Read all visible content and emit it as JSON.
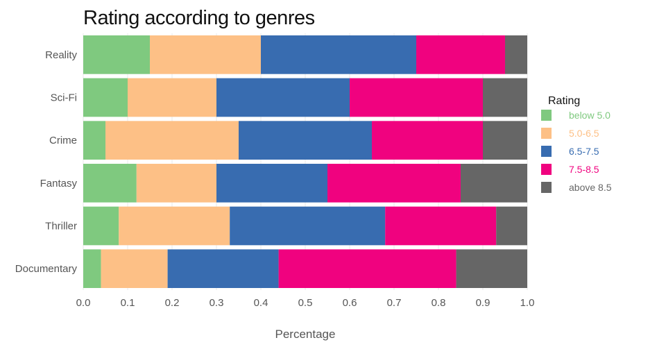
{
  "chart_data": {
    "type": "bar",
    "orientation": "horizontal",
    "stacked": true,
    "title": "Rating according to genres",
    "xlabel": "Percentage",
    "ylabel": "",
    "xlim": [
      0,
      1
    ],
    "xticks": [
      "0.0",
      "0.1",
      "0.2",
      "0.3",
      "0.4",
      "0.5",
      "0.6",
      "0.7",
      "0.8",
      "0.9",
      "1.0"
    ],
    "categories": [
      "Reality",
      "Sci-Fi",
      "Crime",
      "Fantasy",
      "Thriller",
      "Documentary"
    ],
    "legend_title": "Rating",
    "legend_position": "right",
    "grid": true,
    "series": [
      {
        "name": "below 5.0",
        "color": "#7fc97f",
        "values": [
          0.15,
          0.1,
          0.05,
          0.12,
          0.08,
          0.04
        ]
      },
      {
        "name": "5.0-6.5",
        "color": "#fdc086",
        "values": [
          0.25,
          0.2,
          0.3,
          0.18,
          0.25,
          0.15
        ]
      },
      {
        "name": "6.5-7.5",
        "color": "#386cb0",
        "values": [
          0.35,
          0.3,
          0.3,
          0.25,
          0.35,
          0.25
        ]
      },
      {
        "name": "7.5-8.5",
        "color": "#f0027f",
        "values": [
          0.2,
          0.3,
          0.25,
          0.3,
          0.25,
          0.4
        ]
      },
      {
        "name": "above 8.5",
        "color": "#666666",
        "values": [
          0.05,
          0.1,
          0.1,
          0.15,
          0.07,
          0.16
        ]
      }
    ]
  }
}
